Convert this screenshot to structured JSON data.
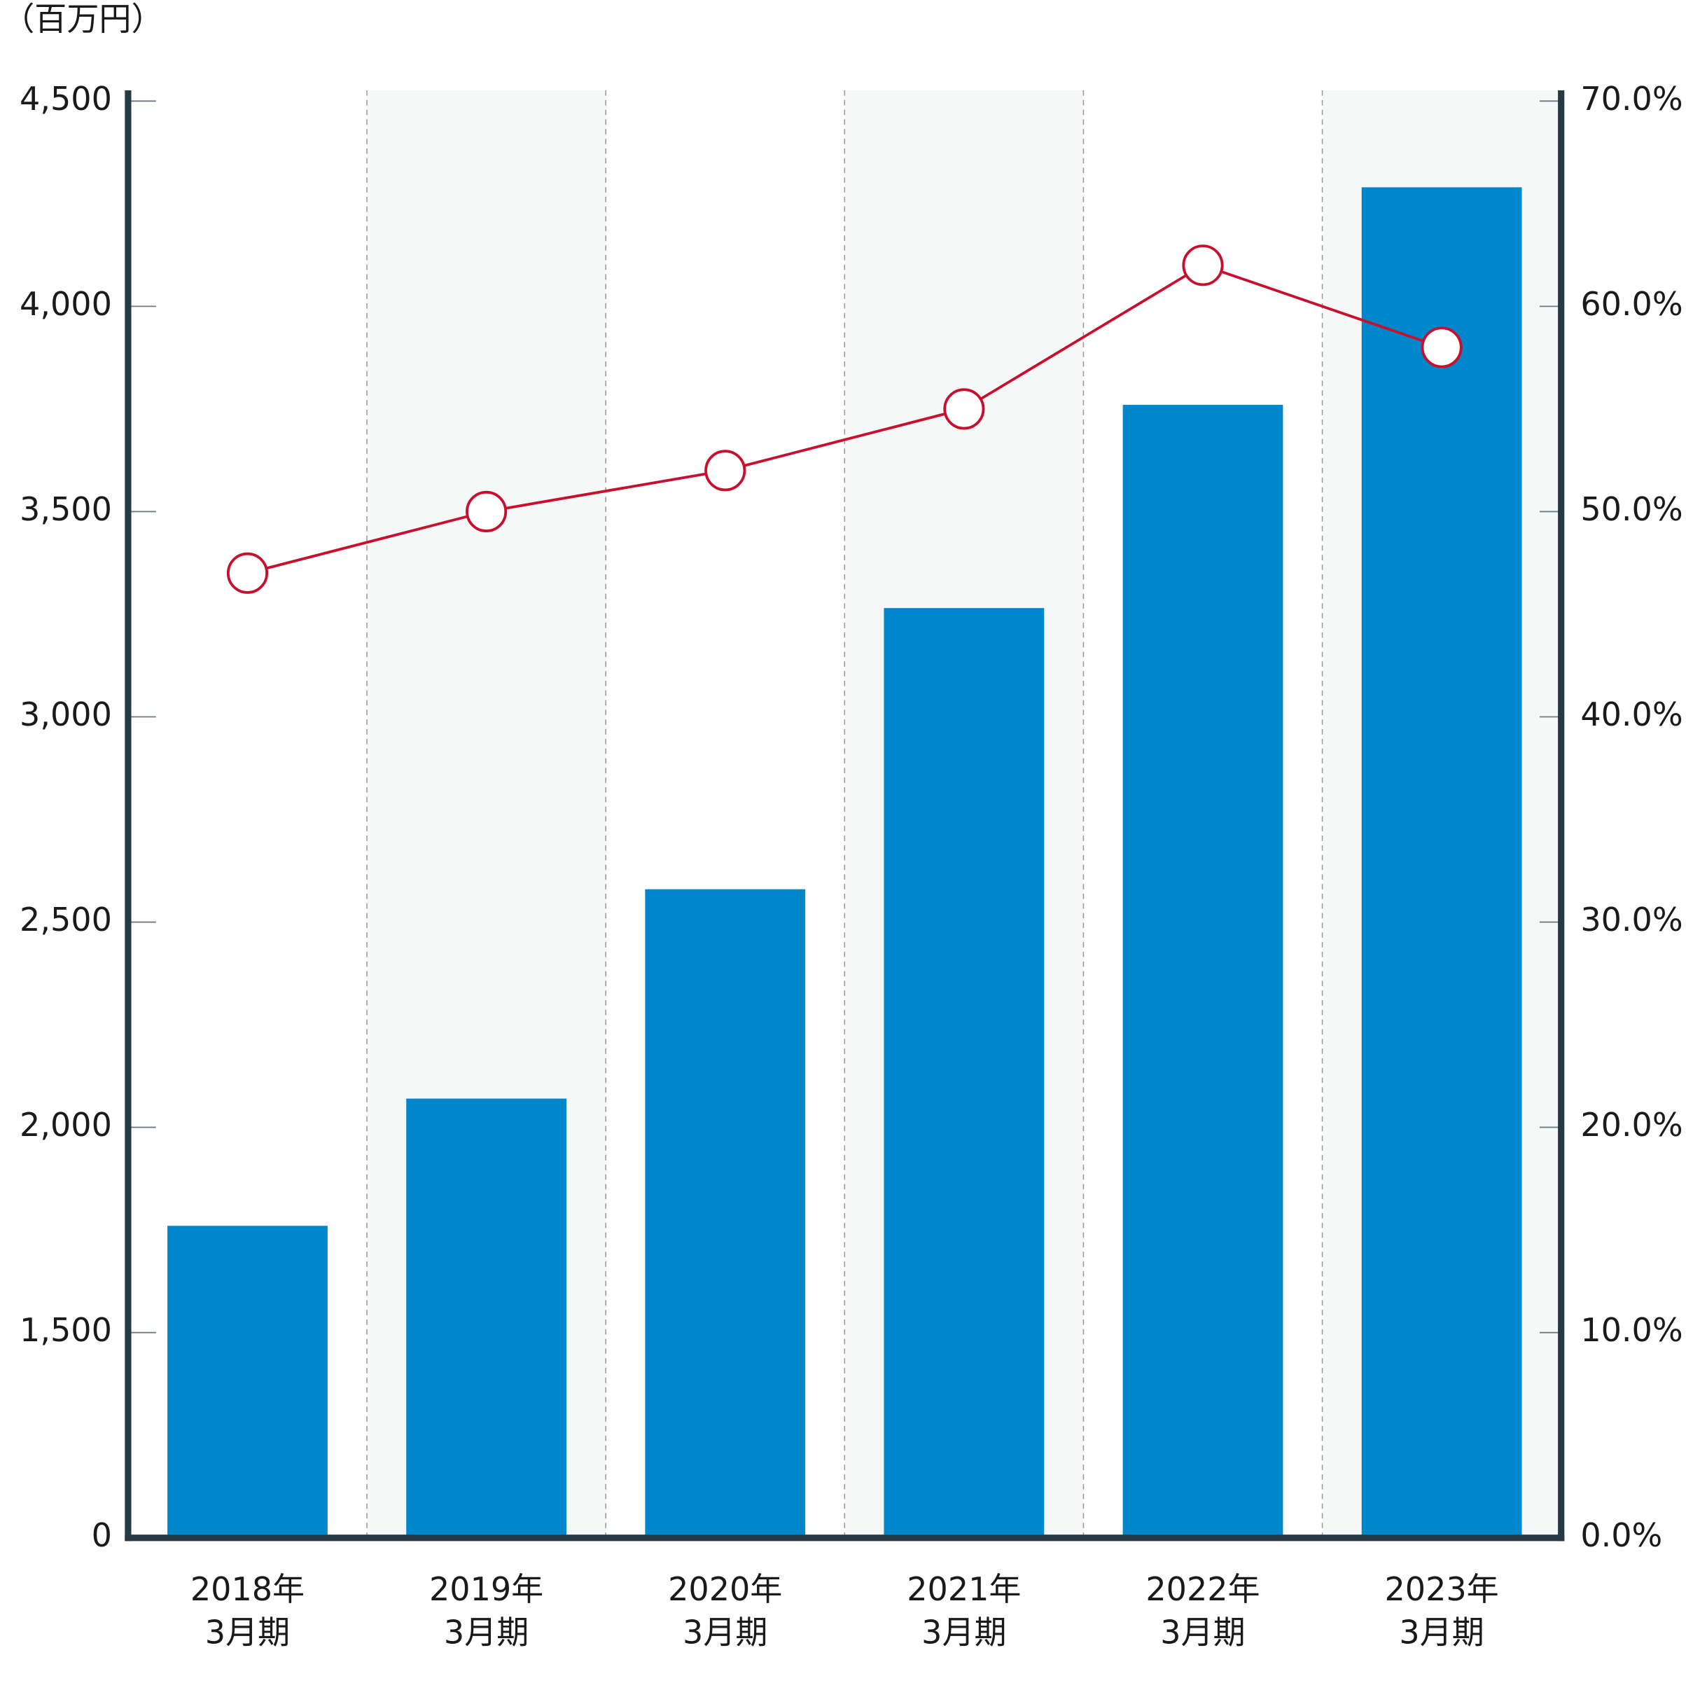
{
  "chart_data": {
    "type": "bar",
    "unit_label": "（百万円）",
    "categories": [
      [
        "2018年",
        "3月期"
      ],
      [
        "2019年",
        "3月期"
      ],
      [
        "2020年",
        "3月期"
      ],
      [
        "2021年",
        "3月期"
      ],
      [
        "2022年",
        "3月期"
      ],
      [
        "2023年",
        "3月期"
      ]
    ],
    "series": [
      {
        "type": "bar",
        "color": "#0086ca",
        "values": [
          1760,
          2070,
          2580,
          3265,
          3760,
          4290
        ]
      },
      {
        "type": "line",
        "axis": "y2",
        "color": "#c8102e",
        "values": [
          47,
          50,
          52,
          55,
          62,
          58
        ]
      }
    ],
    "ylim": [
      0,
      4500
    ],
    "yticks": [
      0,
      {
        "value": 1500,
        "label": "1,500"
      },
      {
        "value": 2000,
        "label": "2,000"
      },
      {
        "value": 2500,
        "label": "2,500"
      },
      {
        "value": 3000,
        "label": "3,000"
      },
      {
        "value": 3500,
        "label": "3,500"
      },
      {
        "value": 4000,
        "label": "4,000"
      },
      {
        "value": 4500,
        "label": "4,500"
      }
    ],
    "y2lim": [
      0,
      70
    ],
    "y2ticks": [
      {
        "value": 0,
        "label": "0.0%"
      },
      {
        "value": 10,
        "label": "10.0%"
      },
      {
        "value": 20,
        "label": "20.0%"
      },
      {
        "value": 30,
        "label": "30.0%"
      },
      {
        "value": 40,
        "label": "40.0%"
      },
      {
        "value": 50,
        "label": "50.0%"
      },
      {
        "value": 60,
        "label": "60.0%"
      },
      {
        "value": 70,
        "label": "70.0%"
      }
    ]
  }
}
